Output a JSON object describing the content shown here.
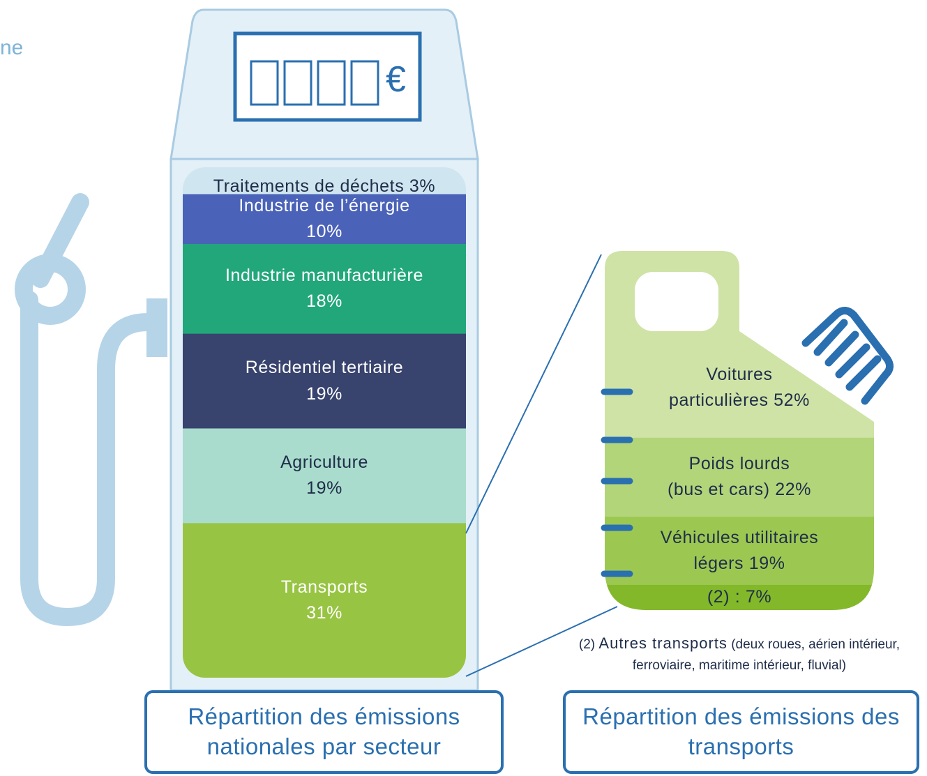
{
  "corner_text": "ne",
  "pump": {
    "currency": "€",
    "sectors": [
      {
        "label": "Traitements de déchets",
        "value": 3,
        "value_label": "3%",
        "color": "#cfe5ef",
        "text_color": "#1f2d4a"
      },
      {
        "label": "Industrie de l’énergie",
        "value": 10,
        "value_label": "10%",
        "color": "#4a62b8",
        "text_color": "#ffffff"
      },
      {
        "label": "Industrie manufacturière",
        "value": 18,
        "value_label": "18%",
        "color": "#22a77a",
        "text_color": "#ffffff"
      },
      {
        "label": "Résidentiel tertiaire",
        "value": 19,
        "value_label": "19%",
        "color": "#38436e",
        "text_color": "#ffffff"
      },
      {
        "label": "Agriculture",
        "value": 19,
        "value_label": "19%",
        "color": "#a9dccc",
        "text_color": "#1f2d4a"
      },
      {
        "label": "Transports",
        "value": 31,
        "value_label": "31%",
        "color": "#98c443",
        "text_color": "#ffffff"
      }
    ],
    "caption": "Répartition des émissions nationales par secteur"
  },
  "jerrycan": {
    "segments": [
      {
        "label": "Voitures\nparticulières",
        "value": 52,
        "value_label": "52%",
        "color": "#cfe3a6",
        "text_color": "#1f2d4a"
      },
      {
        "label": "Poids lourds\n(bus et cars)",
        "value": 22,
        "value_label": "22%",
        "color": "#b3d57a",
        "text_color": "#1f2d4a"
      },
      {
        "label": "Véhicules utilitaires\nlégers",
        "value": 19,
        "value_label": "19%",
        "color": "#9cc852",
        "text_color": "#1f2d4a"
      },
      {
        "label": "(2) :",
        "value": 7,
        "value_label": "7%",
        "color": "#82b82a",
        "text_color": "#1f2d4a"
      }
    ],
    "footnote": {
      "marker": "(2)",
      "term": "Autres transports",
      "detail": "(deux roues, aérien intérieur, ferroviaire, maritime intérieur, fluvial)"
    },
    "caption": "Répartition des émissions des transports"
  }
}
